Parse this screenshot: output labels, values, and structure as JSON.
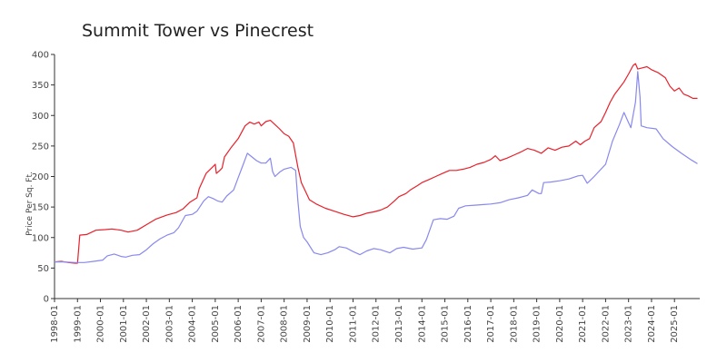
{
  "chart_data": {
    "type": "line",
    "title": "Summit Tower vs Pinecrest",
    "xlabel": "",
    "ylabel": "Price Per Sq. Ft.",
    "ylim": [
      0,
      400
    ],
    "yticks": [
      0,
      50,
      100,
      150,
      200,
      250,
      300,
      350,
      400
    ],
    "xlim": [
      1998.0,
      2026.1
    ],
    "xticks": [
      "1998-01",
      "1999-01",
      "2000-01",
      "2001-01",
      "2002-01",
      "2003-01",
      "2004-01",
      "2005-01",
      "2006-01",
      "2007-01",
      "2008-01",
      "2009-01",
      "2010-01",
      "2011-01",
      "2012-01",
      "2013-01",
      "2014-01",
      "2015-01",
      "2016-01",
      "2017-01",
      "2018-01",
      "2019-01",
      "2020-01",
      "2021-01",
      "2022-01",
      "2023-01",
      "2024-01",
      "2025-01"
    ],
    "grid": false,
    "legend": "none",
    "series": [
      {
        "name": "Summit Tower",
        "color": "#e8202a",
        "points": [
          [
            1998.0,
            60
          ],
          [
            1998.3,
            61
          ],
          [
            1998.6,
            59
          ],
          [
            1998.9,
            58
          ],
          [
            1999.0,
            58
          ],
          [
            1999.1,
            104
          ],
          [
            1999.4,
            105
          ],
          [
            1999.8,
            112
          ],
          [
            2000.2,
            113
          ],
          [
            2000.5,
            114
          ],
          [
            2000.9,
            112
          ],
          [
            2001.2,
            109
          ],
          [
            2001.6,
            112
          ],
          [
            2002.0,
            121
          ],
          [
            2002.4,
            130
          ],
          [
            2002.9,
            137
          ],
          [
            2003.3,
            141
          ],
          [
            2003.6,
            147
          ],
          [
            2003.9,
            158
          ],
          [
            2004.2,
            165
          ],
          [
            2004.3,
            180
          ],
          [
            2004.6,
            205
          ],
          [
            2004.9,
            216
          ],
          [
            2005.0,
            220
          ],
          [
            2005.05,
            205
          ],
          [
            2005.2,
            210
          ],
          [
            2005.3,
            214
          ],
          [
            2005.4,
            232
          ],
          [
            2005.7,
            248
          ],
          [
            2006.0,
            262
          ],
          [
            2006.3,
            283
          ],
          [
            2006.5,
            289
          ],
          [
            2006.7,
            286
          ],
          [
            2006.9,
            289
          ],
          [
            2007.0,
            283
          ],
          [
            2007.2,
            290
          ],
          [
            2007.4,
            292
          ],
          [
            2007.6,
            285
          ],
          [
            2007.8,
            278
          ],
          [
            2008.0,
            270
          ],
          [
            2008.2,
            266
          ],
          [
            2008.4,
            255
          ],
          [
            2008.6,
            215
          ],
          [
            2008.75,
            190
          ],
          [
            2008.9,
            178
          ],
          [
            2009.1,
            162
          ],
          [
            2009.4,
            155
          ],
          [
            2009.8,
            148
          ],
          [
            2010.2,
            143
          ],
          [
            2010.6,
            138
          ],
          [
            2011.0,
            134
          ],
          [
            2011.3,
            136
          ],
          [
            2011.6,
            140
          ],
          [
            2011.9,
            142
          ],
          [
            2012.2,
            145
          ],
          [
            2012.5,
            150
          ],
          [
            2012.8,
            160
          ],
          [
            2013.0,
            167
          ],
          [
            2013.3,
            172
          ],
          [
            2013.5,
            178
          ],
          [
            2013.8,
            185
          ],
          [
            2014.0,
            190
          ],
          [
            2014.3,
            195
          ],
          [
            2014.6,
            200
          ],
          [
            2014.9,
            205
          ],
          [
            2015.2,
            210
          ],
          [
            2015.5,
            210
          ],
          [
            2015.8,
            212
          ],
          [
            2016.1,
            215
          ],
          [
            2016.4,
            220
          ],
          [
            2016.7,
            223
          ],
          [
            2017.0,
            228
          ],
          [
            2017.2,
            234
          ],
          [
            2017.4,
            226
          ],
          [
            2017.7,
            230
          ],
          [
            2018.0,
            235
          ],
          [
            2018.3,
            240
          ],
          [
            2018.6,
            246
          ],
          [
            2018.9,
            243
          ],
          [
            2019.2,
            238
          ],
          [
            2019.5,
            247
          ],
          [
            2019.8,
            243
          ],
          [
            2020.1,
            248
          ],
          [
            2020.4,
            250
          ],
          [
            2020.7,
            258
          ],
          [
            2020.9,
            252
          ],
          [
            2021.1,
            258
          ],
          [
            2021.3,
            262
          ],
          [
            2021.5,
            280
          ],
          [
            2021.8,
            290
          ],
          [
            2022.0,
            305
          ],
          [
            2022.2,
            322
          ],
          [
            2022.4,
            335
          ],
          [
            2022.6,
            345
          ],
          [
            2022.8,
            355
          ],
          [
            2023.0,
            368
          ],
          [
            2023.2,
            382
          ],
          [
            2023.3,
            385
          ],
          [
            2023.4,
            376
          ],
          [
            2023.6,
            378
          ],
          [
            2023.8,
            380
          ],
          [
            2024.0,
            375
          ],
          [
            2024.3,
            370
          ],
          [
            2024.6,
            362
          ],
          [
            2024.8,
            348
          ],
          [
            2025.0,
            340
          ],
          [
            2025.2,
            345
          ],
          [
            2025.4,
            335
          ],
          [
            2025.6,
            332
          ],
          [
            2025.8,
            328
          ],
          [
            2026.0,
            328
          ]
        ]
      },
      {
        "name": "Pinecrest",
        "color": "#8888ee",
        "points": [
          [
            1998.0,
            60
          ],
          [
            1998.4,
            60
          ],
          [
            1998.9,
            59
          ],
          [
            1999.3,
            59
          ],
          [
            1999.7,
            61
          ],
          [
            2000.1,
            63
          ],
          [
            2000.3,
            70
          ],
          [
            2000.6,
            73
          ],
          [
            2000.9,
            69
          ],
          [
            2001.1,
            68
          ],
          [
            2001.4,
            71
          ],
          [
            2001.7,
            72
          ],
          [
            2002.0,
            80
          ],
          [
            2002.3,
            90
          ],
          [
            2002.6,
            98
          ],
          [
            2002.9,
            104
          ],
          [
            2003.2,
            108
          ],
          [
            2003.4,
            116
          ],
          [
            2003.7,
            136
          ],
          [
            2004.0,
            138
          ],
          [
            2004.2,
            143
          ],
          [
            2004.5,
            160
          ],
          [
            2004.7,
            167
          ],
          [
            2004.9,
            164
          ],
          [
            2005.1,
            160
          ],
          [
            2005.3,
            158
          ],
          [
            2005.5,
            168
          ],
          [
            2005.8,
            178
          ],
          [
            2006.0,
            198
          ],
          [
            2006.2,
            218
          ],
          [
            2006.4,
            238
          ],
          [
            2006.6,
            232
          ],
          [
            2006.8,
            226
          ],
          [
            2007.0,
            222
          ],
          [
            2007.2,
            222
          ],
          [
            2007.4,
            230
          ],
          [
            2007.5,
            208
          ],
          [
            2007.6,
            200
          ],
          [
            2007.8,
            207
          ],
          [
            2008.0,
            212
          ],
          [
            2008.3,
            215
          ],
          [
            2008.5,
            210
          ],
          [
            2008.6,
            160
          ],
          [
            2008.7,
            118
          ],
          [
            2008.85,
            100
          ],
          [
            2009.0,
            93
          ],
          [
            2009.3,
            75
          ],
          [
            2009.6,
            72
          ],
          [
            2009.9,
            75
          ],
          [
            2010.2,
            80
          ],
          [
            2010.4,
            85
          ],
          [
            2010.7,
            83
          ],
          [
            2011.0,
            77
          ],
          [
            2011.3,
            72
          ],
          [
            2011.6,
            78
          ],
          [
            2011.9,
            82
          ],
          [
            2012.2,
            80
          ],
          [
            2012.6,
            75
          ],
          [
            2012.9,
            82
          ],
          [
            2013.2,
            84
          ],
          [
            2013.6,
            81
          ],
          [
            2014.0,
            83
          ],
          [
            2014.2,
            97
          ],
          [
            2014.5,
            129
          ],
          [
            2014.8,
            131
          ],
          [
            2015.1,
            130
          ],
          [
            2015.4,
            135
          ],
          [
            2015.6,
            148
          ],
          [
            2015.9,
            152
          ],
          [
            2016.3,
            153
          ],
          [
            2016.7,
            154
          ],
          [
            2017.0,
            155
          ],
          [
            2017.4,
            157
          ],
          [
            2017.8,
            162
          ],
          [
            2018.2,
            165
          ],
          [
            2018.6,
            169
          ],
          [
            2018.8,
            178
          ],
          [
            2019.1,
            172
          ],
          [
            2019.2,
            172
          ],
          [
            2019.3,
            190
          ],
          [
            2019.6,
            191
          ],
          [
            2020.0,
            193
          ],
          [
            2020.4,
            196
          ],
          [
            2020.8,
            201
          ],
          [
            2021.0,
            202
          ],
          [
            2021.2,
            189
          ],
          [
            2021.5,
            200
          ],
          [
            2021.8,
            212
          ],
          [
            2022.0,
            220
          ],
          [
            2022.3,
            258
          ],
          [
            2022.6,
            285
          ],
          [
            2022.8,
            305
          ],
          [
            2023.1,
            280
          ],
          [
            2023.3,
            322
          ],
          [
            2023.4,
            372
          ],
          [
            2023.5,
            330
          ],
          [
            2023.55,
            283
          ],
          [
            2023.8,
            280
          ],
          [
            2024.2,
            278
          ],
          [
            2024.5,
            262
          ],
          [
            2024.9,
            249
          ],
          [
            2025.3,
            238
          ],
          [
            2025.7,
            228
          ],
          [
            2026.0,
            221
          ]
        ]
      }
    ]
  }
}
